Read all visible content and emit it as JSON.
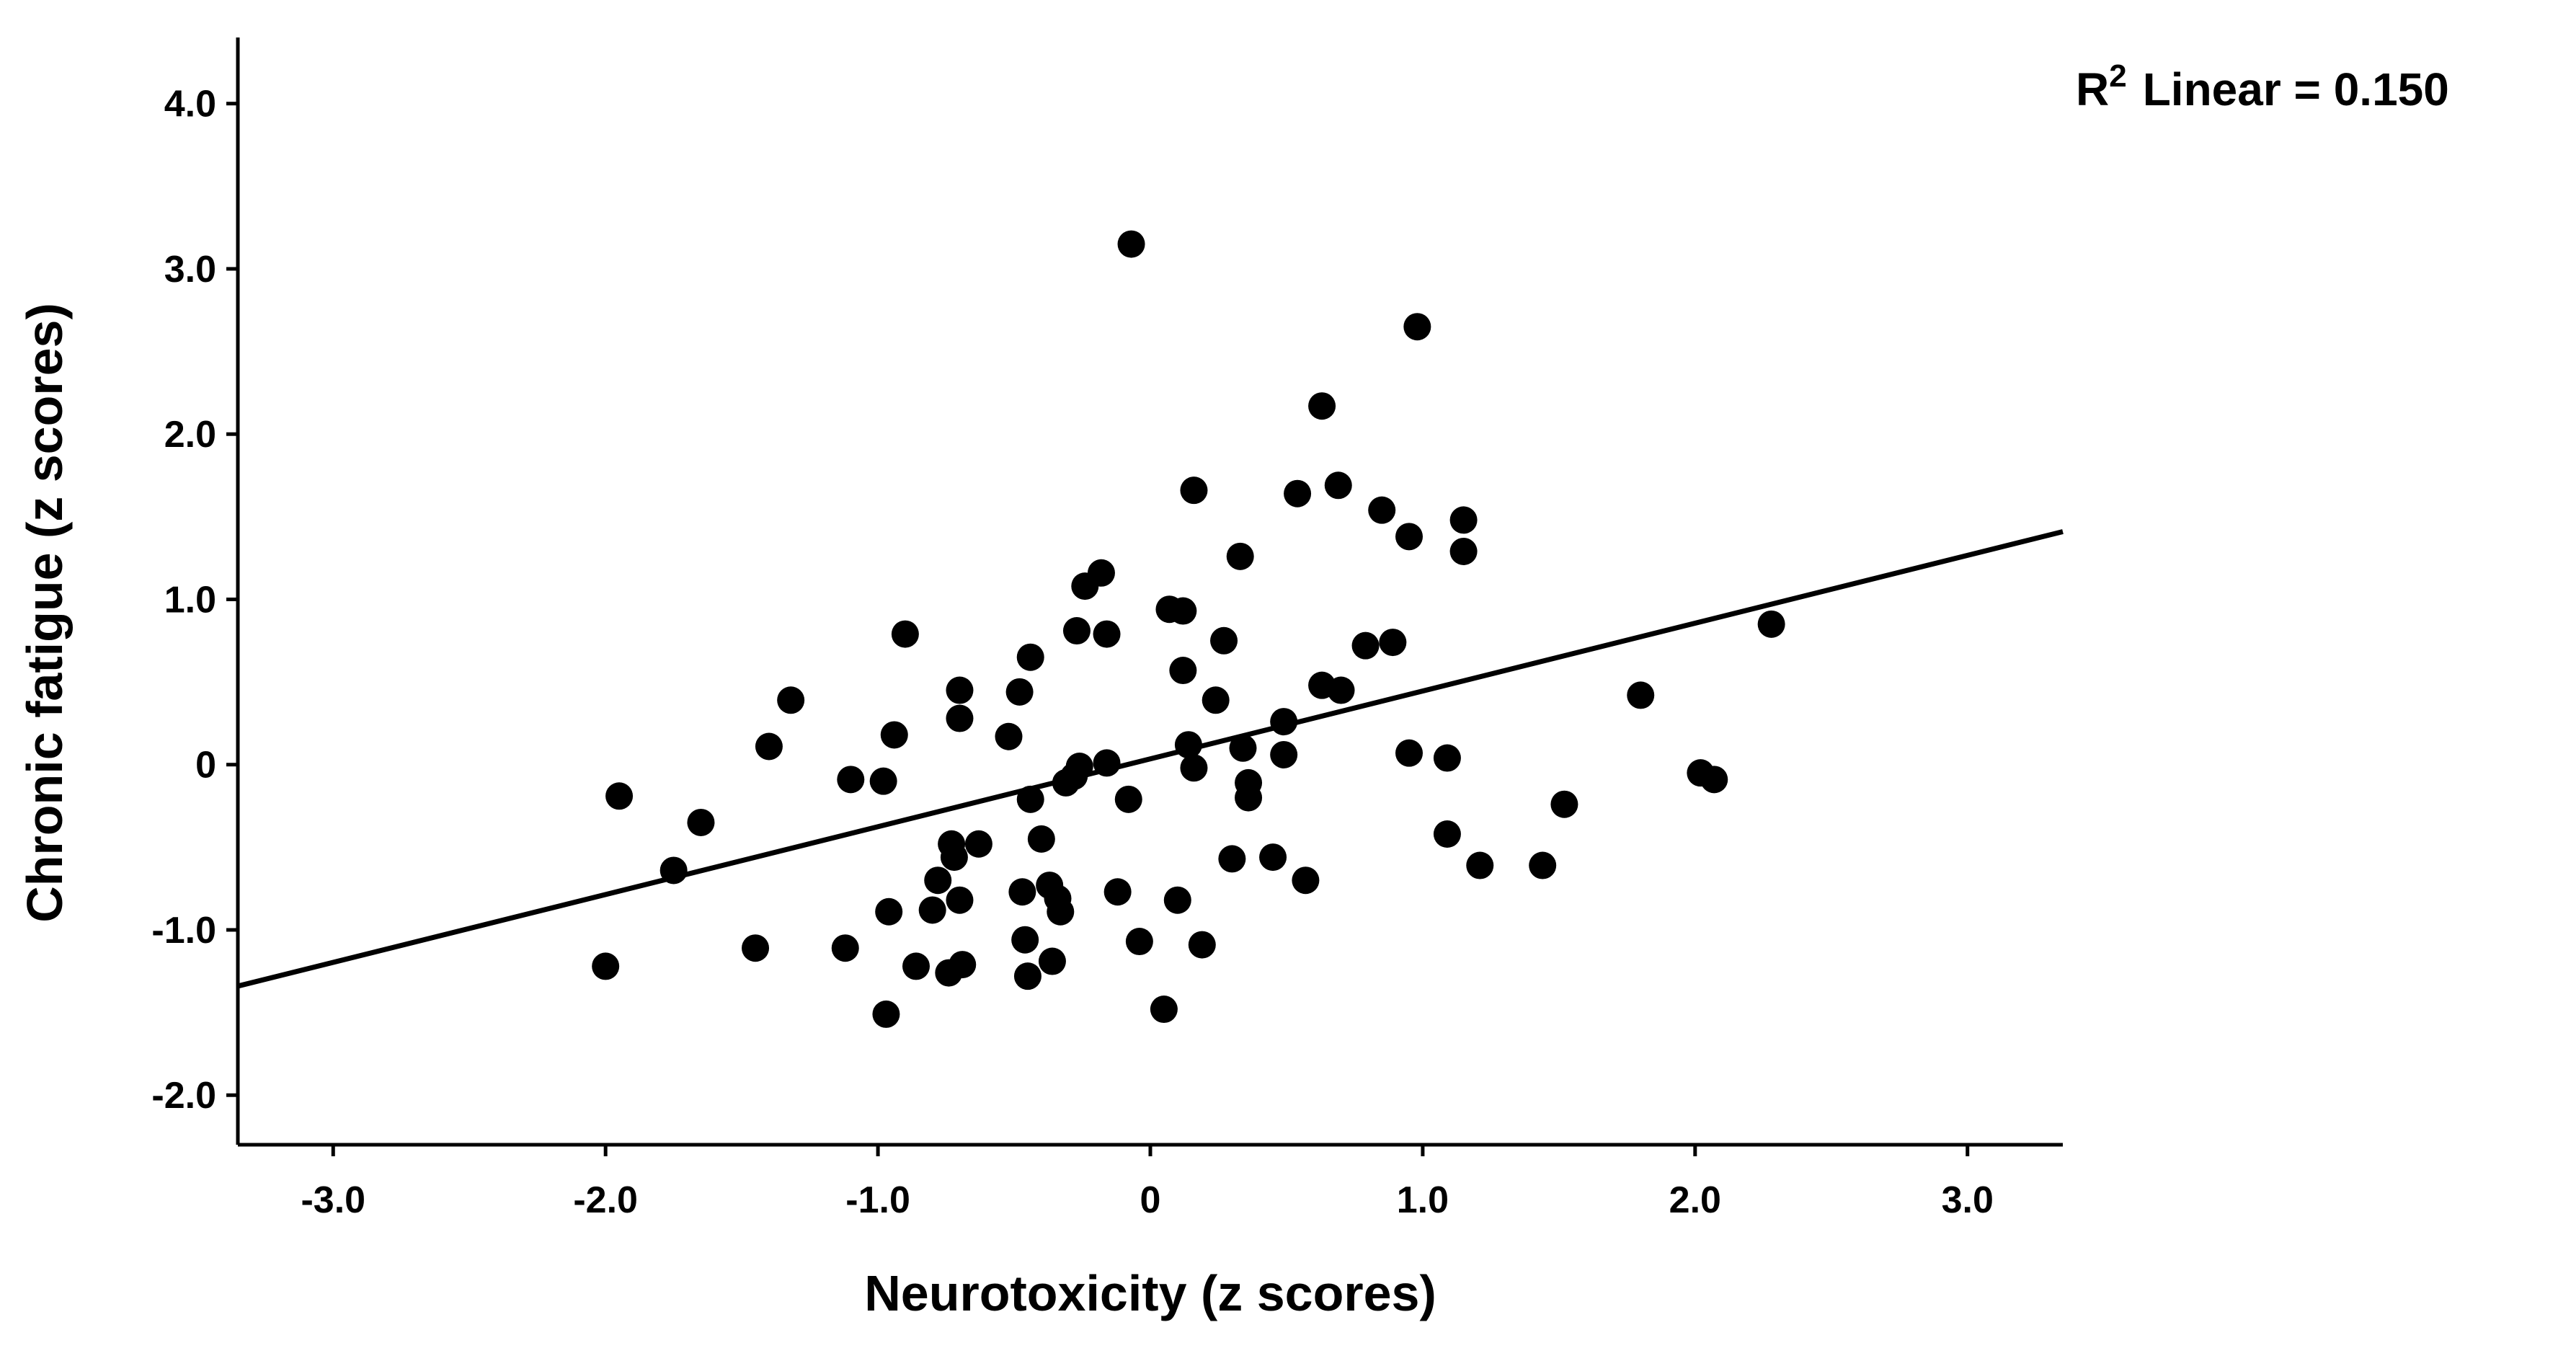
{
  "chart_data": {
    "type": "scatter",
    "title": "",
    "xlabel": "Neurotoxicity (z scores)",
    "ylabel": "Chronic fatigue (z scores)",
    "xlim": [
      -3.35,
      3.35
    ],
    "ylim": [
      -2.3,
      4.4
    ],
    "xticks": [
      -3,
      -2,
      -1,
      0,
      1,
      2,
      3
    ],
    "yticks": [
      -2,
      -1,
      0,
      1,
      2,
      3,
      4
    ],
    "xtick_labels": [
      "-3.0",
      "-2.0",
      "-1.0",
      "0",
      "1.0",
      "2.0",
      "3.0"
    ],
    "ytick_labels": [
      "-2.0",
      "-1.0",
      "0",
      "1.0",
      "2.0",
      "3.0",
      "4.0"
    ],
    "grid": false,
    "fit_line": {
      "kind": "linear",
      "x": [
        -3.35,
        3.35
      ],
      "y": [
        -1.34,
        1.41
      ],
      "r2_label": {
        "prefix": "R",
        "superscript": "2",
        "text": "Linear = 0.150"
      }
    },
    "points": [
      {
        "x": -2.0,
        "y": -1.22
      },
      {
        "x": -1.95,
        "y": -0.19
      },
      {
        "x": -1.75,
        "y": -0.64
      },
      {
        "x": -1.65,
        "y": -0.35
      },
      {
        "x": -1.45,
        "y": -1.11
      },
      {
        "x": -1.4,
        "y": 0.11
      },
      {
        "x": -1.32,
        "y": 0.39
      },
      {
        "x": -1.12,
        "y": -1.11
      },
      {
        "x": -1.1,
        "y": -0.09
      },
      {
        "x": -0.98,
        "y": -0.1
      },
      {
        "x": -0.97,
        "y": -1.51
      },
      {
        "x": -0.96,
        "y": -0.89
      },
      {
        "x": -0.94,
        "y": 0.18
      },
      {
        "x": -0.9,
        "y": 0.79
      },
      {
        "x": -0.86,
        "y": -1.22
      },
      {
        "x": -0.8,
        "y": -0.88
      },
      {
        "x": -0.78,
        "y": -0.7
      },
      {
        "x": -0.74,
        "y": -1.26
      },
      {
        "x": -0.73,
        "y": -0.48
      },
      {
        "x": -0.72,
        "y": -0.56
      },
      {
        "x": -0.7,
        "y": -0.82
      },
      {
        "x": -0.7,
        "y": 0.28
      },
      {
        "x": -0.7,
        "y": 0.45
      },
      {
        "x": -0.69,
        "y": -1.21
      },
      {
        "x": -0.63,
        "y": -0.48
      },
      {
        "x": -0.52,
        "y": 0.17
      },
      {
        "x": -0.48,
        "y": 0.44
      },
      {
        "x": -0.47,
        "y": -0.77
      },
      {
        "x": -0.46,
        "y": -1.06
      },
      {
        "x": -0.45,
        "y": -1.28
      },
      {
        "x": -0.44,
        "y": -0.21
      },
      {
        "x": -0.44,
        "y": 0.65
      },
      {
        "x": -0.4,
        "y": -0.45
      },
      {
        "x": -0.37,
        "y": -0.73
      },
      {
        "x": -0.36,
        "y": -1.19
      },
      {
        "x": -0.34,
        "y": -0.81
      },
      {
        "x": -0.33,
        "y": -0.89
      },
      {
        "x": -0.31,
        "y": -0.11
      },
      {
        "x": -0.28,
        "y": -0.07
      },
      {
        "x": -0.27,
        "y": 0.81
      },
      {
        "x": -0.26,
        "y": -0.01
      },
      {
        "x": -0.24,
        "y": 1.08
      },
      {
        "x": -0.18,
        "y": 1.16
      },
      {
        "x": -0.16,
        "y": 0.79
      },
      {
        "x": -0.16,
        "y": 0.01
      },
      {
        "x": -0.12,
        "y": -0.77
      },
      {
        "x": -0.08,
        "y": -0.21
      },
      {
        "x": -0.07,
        "y": 3.15
      },
      {
        "x": -0.04,
        "y": -1.07
      },
      {
        "x": 0.05,
        "y": -1.48
      },
      {
        "x": 0.07,
        "y": 0.94
      },
      {
        "x": 0.1,
        "y": -0.82
      },
      {
        "x": 0.12,
        "y": 0.57
      },
      {
        "x": 0.12,
        "y": 0.93
      },
      {
        "x": 0.14,
        "y": 0.12
      },
      {
        "x": 0.16,
        "y": 1.66
      },
      {
        "x": 0.16,
        "y": -0.02
      },
      {
        "x": 0.19,
        "y": -1.09
      },
      {
        "x": 0.24,
        "y": 0.39
      },
      {
        "x": 0.27,
        "y": 0.75
      },
      {
        "x": 0.3,
        "y": -0.57
      },
      {
        "x": 0.33,
        "y": 1.26
      },
      {
        "x": 0.34,
        "y": 0.1
      },
      {
        "x": 0.36,
        "y": -0.11
      },
      {
        "x": 0.36,
        "y": -0.2
      },
      {
        "x": 0.45,
        "y": -0.56
      },
      {
        "x": 0.49,
        "y": 0.06
      },
      {
        "x": 0.49,
        "y": 0.26
      },
      {
        "x": 0.54,
        "y": 1.64
      },
      {
        "x": 0.57,
        "y": -0.7
      },
      {
        "x": 0.63,
        "y": 2.17
      },
      {
        "x": 0.63,
        "y": 0.48
      },
      {
        "x": 0.69,
        "y": 1.69
      },
      {
        "x": 0.7,
        "y": 0.45
      },
      {
        "x": 0.79,
        "y": 0.72
      },
      {
        "x": 0.85,
        "y": 1.54
      },
      {
        "x": 0.89,
        "y": 0.74
      },
      {
        "x": 0.95,
        "y": 1.38
      },
      {
        "x": 0.95,
        "y": 0.07
      },
      {
        "x": 0.98,
        "y": 2.65
      },
      {
        "x": 1.09,
        "y": 0.04
      },
      {
        "x": 1.09,
        "y": -0.42
      },
      {
        "x": 1.15,
        "y": 1.48
      },
      {
        "x": 1.15,
        "y": 1.29
      },
      {
        "x": 1.21,
        "y": -0.61
      },
      {
        "x": 1.44,
        "y": -0.61
      },
      {
        "x": 1.52,
        "y": -0.24
      },
      {
        "x": 1.8,
        "y": 0.42
      },
      {
        "x": 2.02,
        "y": -0.05
      },
      {
        "x": 2.07,
        "y": -0.09
      },
      {
        "x": 2.28,
        "y": 0.85
      }
    ]
  }
}
